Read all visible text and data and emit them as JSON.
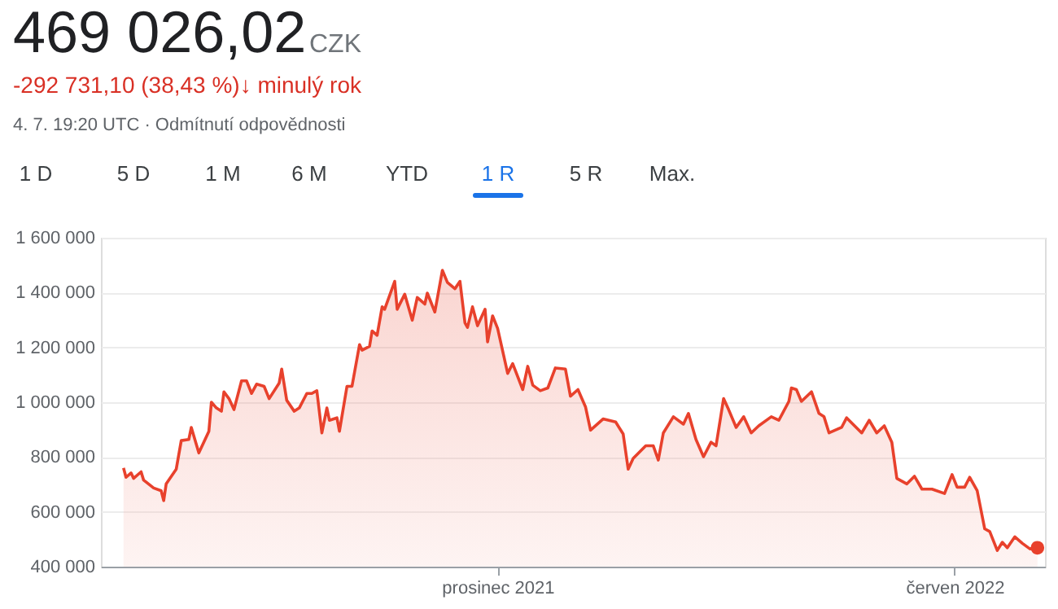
{
  "chart_data": {
    "type": "area",
    "title": "469 026,02",
    "subtitle": "-292 731,10 (38,43 %)↓ minulý rok",
    "annotations": [
      "CZK",
      "4. 7. 19:20 UTC · Odmítnutí odpovědnosti",
      "1 D",
      "5 D",
      "1 M",
      "6 M",
      "YTD",
      "1 R",
      "5 R",
      "Max."
    ],
    "x": [
      "2021-07-05",
      "2021-07-06",
      "2021-07-08",
      "2021-07-09",
      "2021-07-12",
      "2021-07-13",
      "2021-07-17",
      "2021-07-20",
      "2021-07-21",
      "2021-07-22",
      "2021-07-26",
      "2021-07-28",
      "2021-07-31",
      "2021-08-01",
      "2021-08-04",
      "2021-08-08",
      "2021-08-09",
      "2021-08-11",
      "2021-08-13",
      "2021-08-14",
      "2021-08-16",
      "2021-08-18",
      "2021-08-21",
      "2021-08-23",
      "2021-08-25",
      "2021-08-27",
      "2021-08-30",
      "2021-09-01",
      "2021-09-05",
      "2021-09-06",
      "2021-09-08",
      "2021-09-11",
      "2021-09-13",
      "2021-09-16",
      "2021-09-18",
      "2021-09-20",
      "2021-09-22",
      "2021-09-24",
      "2021-09-25",
      "2021-09-28",
      "2021-09-29",
      "2021-10-02",
      "2021-10-04",
      "2021-10-07",
      "2021-10-08",
      "2021-10-11",
      "2021-10-12",
      "2021-10-14",
      "2021-10-16",
      "2021-10-17",
      "2021-10-21",
      "2021-10-22",
      "2021-10-25",
      "2021-10-28",
      "2021-10-30",
      "2021-11-02",
      "2021-11-03",
      "2021-11-06",
      "2021-11-09",
      "2021-11-11",
      "2021-11-14",
      "2021-11-16",
      "2021-11-18",
      "2021-11-19",
      "2021-11-21",
      "2021-11-23",
      "2021-11-26",
      "2021-11-27",
      "2021-11-29",
      "2021-12-01",
      "2021-12-05",
      "2021-12-07",
      "2021-12-11",
      "2021-12-13",
      "2021-12-15",
      "2021-12-18",
      "2021-12-21",
      "2021-12-24",
      "2021-12-28",
      "2021-12-30",
      "2022-01-02",
      "2022-01-05",
      "2022-01-07",
      "2022-01-12",
      "2022-01-17",
      "2022-01-20",
      "2022-01-22",
      "2022-01-24",
      "2022-01-29",
      "2022-02-01",
      "2022-02-03",
      "2022-02-05",
      "2022-02-09",
      "2022-02-13",
      "2022-02-15",
      "2022-02-18",
      "2022-02-21",
      "2022-02-24",
      "2022-02-26",
      "2022-03-01",
      "2022-03-03",
      "2022-03-06",
      "2022-03-09",
      "2022-03-12",
      "2022-03-15",
      "2022-03-20",
      "2022-03-23",
      "2022-03-27",
      "2022-03-28",
      "2022-03-30",
      "2022-04-01",
      "2022-04-05",
      "2022-04-08",
      "2022-04-10",
      "2022-04-12",
      "2022-04-17",
      "2022-04-19",
      "2022-04-25",
      "2022-04-28",
      "2022-05-01",
      "2022-05-04",
      "2022-05-07",
      "2022-05-09",
      "2022-05-13",
      "2022-05-16",
      "2022-05-19",
      "2022-05-23",
      "2022-05-28",
      "2022-05-31",
      "2022-06-02",
      "2022-06-05",
      "2022-06-07",
      "2022-06-10",
      "2022-06-13",
      "2022-06-15",
      "2022-06-18",
      "2022-06-20",
      "2022-06-22",
      "2022-06-25",
      "2022-06-28",
      "2022-07-01",
      "2022-07-04"
    ],
    "series": [
      {
        "color": "#e8412c",
        "values": [
          760000,
          726000,
          742000,
          722000,
          746000,
          716000,
          687000,
          677000,
          641000,
          702000,
          756000,
          860000,
          864000,
          908000,
          815000,
          894000,
          1000000,
          979000,
          967000,
          1038000,
          1013000,
          973000,
          1078000,
          1078000,
          1032000,
          1066000,
          1058000,
          1013000,
          1070000,
          1121000,
          1007000,
          967000,
          979000,
          1032000,
          1032000,
          1042000,
          888000,
          979000,
          934000,
          943000,
          894000,
          1058000,
          1058000,
          1210000,
          1190000,
          1204000,
          1260000,
          1244000,
          1348000,
          1339000,
          1441000,
          1339000,
          1394000,
          1299000,
          1382000,
          1358000,
          1398000,
          1329000,
          1481000,
          1437000,
          1414000,
          1441000,
          1289000,
          1273000,
          1348000,
          1279000,
          1339000,
          1220000,
          1315000,
          1269000,
          1105000,
          1141000,
          1046000,
          1131000,
          1062000,
          1042000,
          1052000,
          1125000,
          1121000,
          1022000,
          1046000,
          983000,
          898000,
          939000,
          928000,
          884000,
          756000,
          795000,
          841000,
          841000,
          789000,
          888000,
          947000,
          920000,
          959000,
          864000,
          801000,
          854000,
          841000,
          1013000,
          973000,
          908000,
          947000,
          888000,
          914000,
          947000,
          934000,
          1003000,
          1052000,
          1046000,
          1003000,
          1038000,
          959000,
          947000,
          888000,
          908000,
          943000,
          888000,
          934000,
          888000,
          914000,
          854000,
          722000,
          702000,
          730000,
          683000,
          683000,
          667000,
          736000,
          690000,
          690000,
          726000,
          677000,
          538000,
          528000,
          459000,
          489000,
          469000,
          509000,
          485000,
          465000,
          469000
        ]
      }
    ],
    "xlim": [
      "2021-06-26",
      "2022-07-07"
    ],
    "xticks": [
      {
        "value": "2021-12-01",
        "label": "prosinec 2021"
      },
      {
        "value": "2022-06-01",
        "label": "červen 2022"
      }
    ],
    "ylim": [
      400000,
      1600000
    ],
    "yticks": [
      {
        "value": 400000,
        "label": "400 000"
      },
      {
        "value": 600000,
        "label": "600 000"
      },
      {
        "value": 800000,
        "label": "800 000"
      },
      {
        "value": 1000000,
        "label": "1 000 000"
      },
      {
        "value": 1200000,
        "label": "1 200 000"
      },
      {
        "value": 1400000,
        "label": "1 400 000"
      },
      {
        "value": 1600000,
        "label": "1 600 000"
      }
    ],
    "grid": "y"
  }
}
